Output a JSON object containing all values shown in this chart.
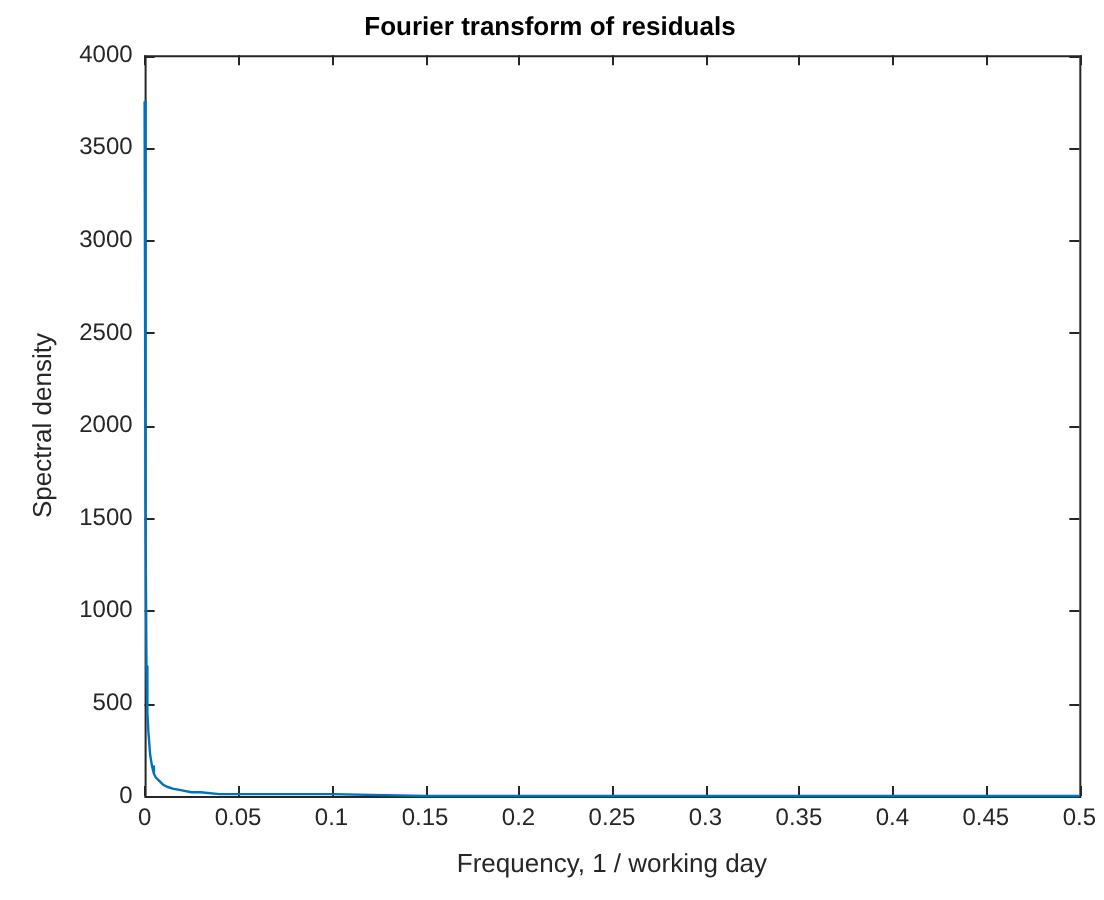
{
  "chart_data": {
    "type": "line",
    "title": "Fourier transform of residuals",
    "xlabel": "Frequency, 1 / working day",
    "ylabel": "Spectral density",
    "x": [
      0,
      0.0005,
      0.001,
      0.0015,
      0.002,
      0.003,
      0.004,
      0.005,
      0.006,
      0.008,
      0.01,
      0.012,
      0.015,
      0.02,
      0.025,
      0.03,
      0.04,
      0.05,
      0.07,
      0.1,
      0.15,
      0.2,
      0.3,
      0.4,
      0.5
    ],
    "values": [
      3750,
      1500,
      700,
      450,
      350,
      220,
      160,
      120,
      100,
      80,
      60,
      50,
      40,
      30,
      20,
      20,
      10,
      10,
      10,
      10,
      0,
      0,
      0,
      0,
      0
    ],
    "color": "#0072bd",
    "xlim": [
      0,
      0.5
    ],
    "xticks": [
      0,
      0.05,
      0.1,
      0.15,
      0.2,
      0.25,
      0.3,
      0.35,
      0.4,
      0.45,
      0.5
    ],
    "ylim": [
      0,
      4000
    ],
    "yticks": [
      0,
      500,
      1000,
      1500,
      2000,
      2500,
      3000,
      3500,
      4000
    ],
    "grid": false,
    "legend": false,
    "marker": "none",
    "line_style": "solid"
  }
}
